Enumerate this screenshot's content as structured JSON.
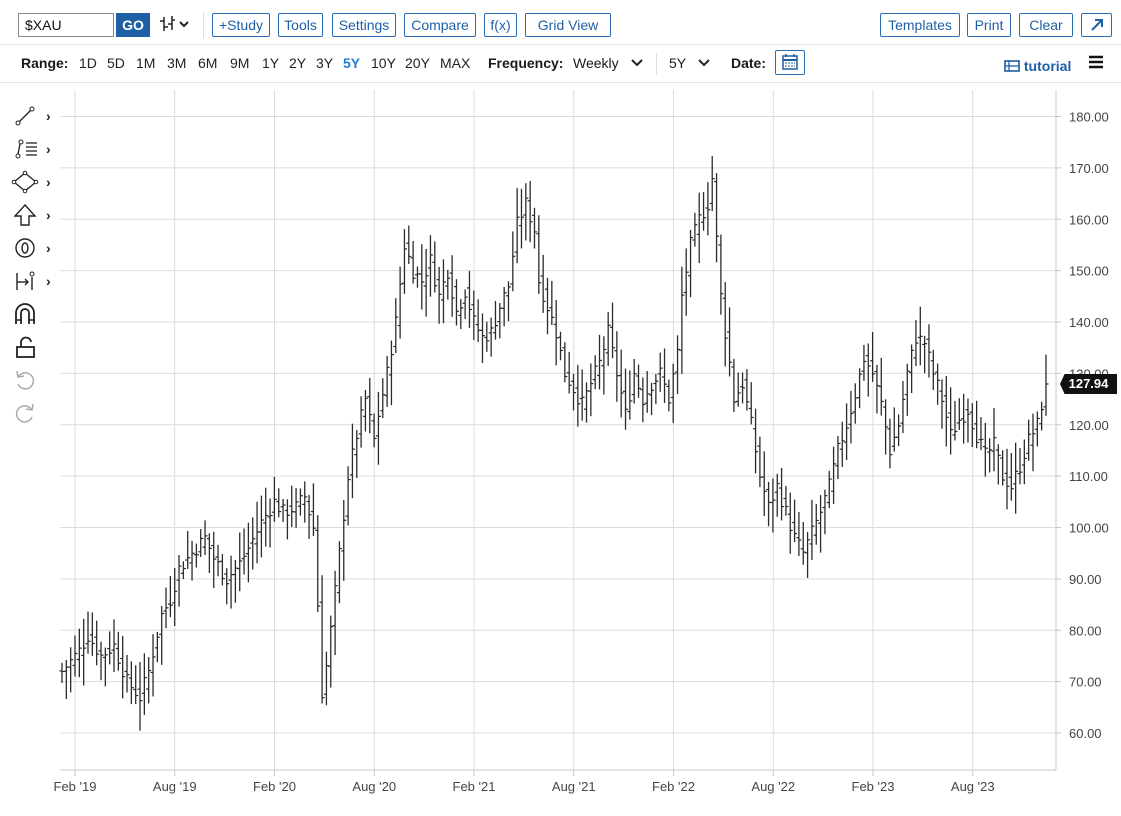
{
  "toolbar": {
    "symbol": "$XAU",
    "go_label": "GO",
    "bar_icon_glyph": "⫷",
    "buttons": [
      "+Study",
      "Tools",
      "Settings",
      "Compare",
      "f(x)",
      "Grid View"
    ],
    "right_buttons": [
      "Templates",
      "Print",
      "Clear"
    ],
    "expand_icon": "expand-icon"
  },
  "rangebar": {
    "range_label": "Range:",
    "ranges": [
      "1D",
      "5D",
      "1M",
      "3M",
      "6M",
      "9M",
      "1Y",
      "2Y",
      "3Y",
      "5Y",
      "10Y",
      "20Y",
      "MAX"
    ],
    "active_range": "5Y",
    "frequency_label": "Frequency:",
    "frequency_value": "Weekly",
    "period_value": "5Y",
    "date_label": "Date:",
    "tutorial_label": "tutorial"
  },
  "left_tools": [
    "line-tool-icon",
    "fib-tool-icon",
    "shape-tool-icon",
    "arrow-tool-icon",
    "label-tool-icon",
    "measure-tool-icon",
    "magnet-icon",
    "lock-icon",
    "undo-icon",
    "redo-icon"
  ],
  "chart_data": {
    "type": "ohlc",
    "frequency": "weekly",
    "ylim": [
      52,
      185
    ],
    "yticks": [
      60,
      70,
      80,
      90,
      100,
      110,
      120,
      130,
      140,
      150,
      160,
      170,
      180
    ],
    "ytick_labels": [
      "60.00",
      "70.00",
      "80.00",
      "90.00",
      "100.00",
      "110.00",
      "120.00",
      "130.00",
      "140.00",
      "150.00",
      "160.00",
      "170.00",
      "180.00"
    ],
    "xtick_labels": [
      "Feb '19",
      "Aug '19",
      "Feb '20",
      "Aug '20",
      "Feb '21",
      "Aug '21",
      "Feb '22",
      "Aug '22",
      "Feb '23",
      "Aug '23"
    ],
    "last_price": "127.94",
    "grid": true,
    "anchors": [
      [
        0,
        72
      ],
      [
        4,
        76
      ],
      [
        6,
        79
      ],
      [
        9,
        75
      ],
      [
        12,
        77
      ],
      [
        15,
        70
      ],
      [
        18,
        67
      ],
      [
        20,
        72
      ],
      [
        23,
        83
      ],
      [
        25,
        86
      ],
      [
        27,
        92
      ],
      [
        30,
        95
      ],
      [
        33,
        98
      ],
      [
        35,
        94
      ],
      [
        38,
        90
      ],
      [
        41,
        93
      ],
      [
        43,
        96
      ],
      [
        46,
        101
      ],
      [
        49,
        105
      ],
      [
        51,
        103
      ],
      [
        54,
        104
      ],
      [
        56,
        106
      ],
      [
        58,
        100
      ],
      [
        59,
        85
      ],
      [
        60,
        68
      ],
      [
        61,
        73
      ],
      [
        62,
        80
      ],
      [
        64,
        95
      ],
      [
        66,
        110
      ],
      [
        68,
        118
      ],
      [
        70,
        125
      ],
      [
        72,
        117
      ],
      [
        73,
        122
      ],
      [
        75,
        130
      ],
      [
        77,
        140
      ],
      [
        79,
        155
      ],
      [
        81,
        150
      ],
      [
        83,
        148
      ],
      [
        85,
        152
      ],
      [
        87,
        145
      ],
      [
        89,
        150
      ],
      [
        91,
        142
      ],
      [
        93,
        146
      ],
      [
        95,
        140
      ],
      [
        97,
        137
      ],
      [
        99,
        138
      ],
      [
        101,
        143
      ],
      [
        103,
        147
      ],
      [
        105,
        159
      ],
      [
        107,
        163
      ],
      [
        109,
        158
      ],
      [
        110,
        148
      ],
      [
        112,
        143
      ],
      [
        114,
        138
      ],
      [
        116,
        130
      ],
      [
        118,
        127
      ],
      [
        120,
        124
      ],
      [
        122,
        128
      ],
      [
        124,
        132
      ],
      [
        126,
        138
      ],
      [
        128,
        130
      ],
      [
        130,
        122
      ],
      [
        132,
        130
      ],
      [
        134,
        125
      ],
      [
        136,
        128
      ],
      [
        138,
        130
      ],
      [
        140,
        125
      ],
      [
        142,
        134
      ],
      [
        143,
        145
      ],
      [
        145,
        155
      ],
      [
        147,
        160
      ],
      [
        149,
        163
      ],
      [
        150,
        168
      ],
      [
        151,
        156
      ],
      [
        152,
        145
      ],
      [
        153,
        138
      ],
      [
        154,
        132
      ],
      [
        155,
        125
      ],
      [
        157,
        128
      ],
      [
        159,
        120
      ],
      [
        161,
        110
      ],
      [
        163,
        104
      ],
      [
        165,
        108
      ],
      [
        167,
        103
      ],
      [
        169,
        98
      ],
      [
        171,
        95
      ],
      [
        173,
        99
      ],
      [
        175,
        103
      ],
      [
        177,
        108
      ],
      [
        179,
        115
      ],
      [
        181,
        120
      ],
      [
        183,
        126
      ],
      [
        185,
        133
      ],
      [
        187,
        130
      ],
      [
        189,
        124
      ],
      [
        191,
        115
      ],
      [
        193,
        120
      ],
      [
        195,
        130
      ],
      [
        197,
        137
      ],
      [
        199,
        136
      ],
      [
        201,
        130
      ],
      [
        203,
        125
      ],
      [
        205,
        118
      ],
      [
        207,
        121
      ],
      [
        209,
        123
      ],
      [
        211,
        118
      ],
      [
        213,
        114
      ],
      [
        215,
        116
      ],
      [
        217,
        110
      ],
      [
        219,
        108
      ],
      [
        221,
        112
      ],
      [
        223,
        117
      ],
      [
        225,
        120
      ],
      [
        227,
        128
      ]
    ]
  }
}
